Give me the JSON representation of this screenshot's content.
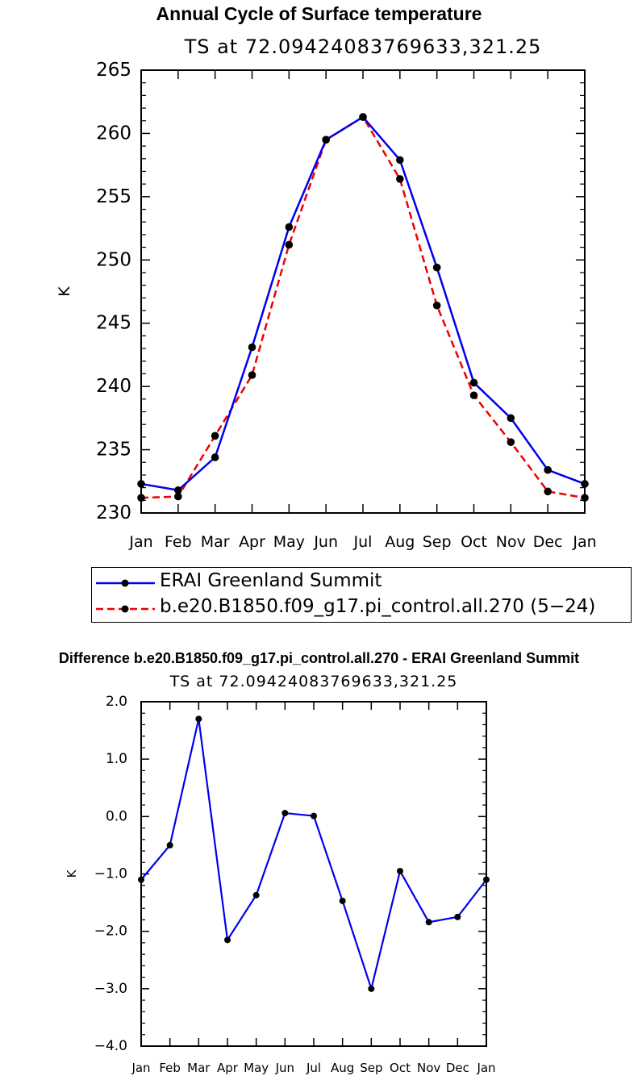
{
  "chart_data": [
    {
      "type": "line",
      "title": "Annual Cycle of Surface temperature",
      "subtitle": "TS at 72.09424083769633,321.25",
      "xlabel": "",
      "ylabel": "K",
      "categories": [
        "Jan",
        "Feb",
        "Mar",
        "Apr",
        "May",
        "Jun",
        "Jul",
        "Aug",
        "Sep",
        "Oct",
        "Nov",
        "Dec",
        "Jan"
      ],
      "ylim": [
        230,
        265
      ],
      "yticks": [
        "230",
        "235",
        "240",
        "245",
        "250",
        "255",
        "260",
        "265"
      ],
      "ytick_values": [
        230,
        235,
        240,
        245,
        250,
        255,
        260,
        265
      ],
      "series": [
        {
          "name": "ERAI Greenland Summit",
          "color": "#0000ee",
          "dash": "solid",
          "values": [
            232.3,
            231.8,
            234.4,
            243.1,
            252.6,
            259.5,
            261.3,
            257.9,
            249.4,
            240.3,
            237.5,
            233.4,
            232.3
          ]
        },
        {
          "name": "b.e20.B1850.f09_g17.pi_control.all.270 (5−24)",
          "color": "#ee0000",
          "dash": "dashed",
          "values": [
            231.2,
            231.3,
            236.1,
            240.9,
            251.2,
            259.5,
            261.3,
            256.4,
            246.4,
            239.3,
            235.6,
            231.7,
            231.2
          ]
        }
      ]
    },
    {
      "type": "line",
      "title": "Difference b.e20.B1850.f09_g17.pi_control.all.270 - ERAI Greenland Summit",
      "subtitle": "TS at 72.09424083769633,321.25",
      "xlabel": "",
      "ylabel": "K",
      "categories": [
        "Jan",
        "Feb",
        "Mar",
        "Apr",
        "May",
        "Jun",
        "Jul",
        "Aug",
        "Sep",
        "Oct",
        "Nov",
        "Dec",
        "Jan"
      ],
      "ylim": [
        -4.0,
        2.0
      ],
      "yticks": [
        "2.0",
        "1.0",
        "0.0",
        "−1.0",
        "−2.0",
        "−3.0",
        "−4.0"
      ],
      "ytick_values": [
        2,
        1,
        0,
        -1,
        -2,
        -3,
        -4
      ],
      "series": [
        {
          "name": "Difference",
          "color": "#0000ee",
          "dash": "solid",
          "values": [
            -1.1,
            -0.5,
            1.7,
            -2.15,
            -1.37,
            0.06,
            0.01,
            -1.47,
            -3.0,
            -0.95,
            -1.84,
            -1.75,
            -1.1
          ]
        }
      ]
    }
  ]
}
